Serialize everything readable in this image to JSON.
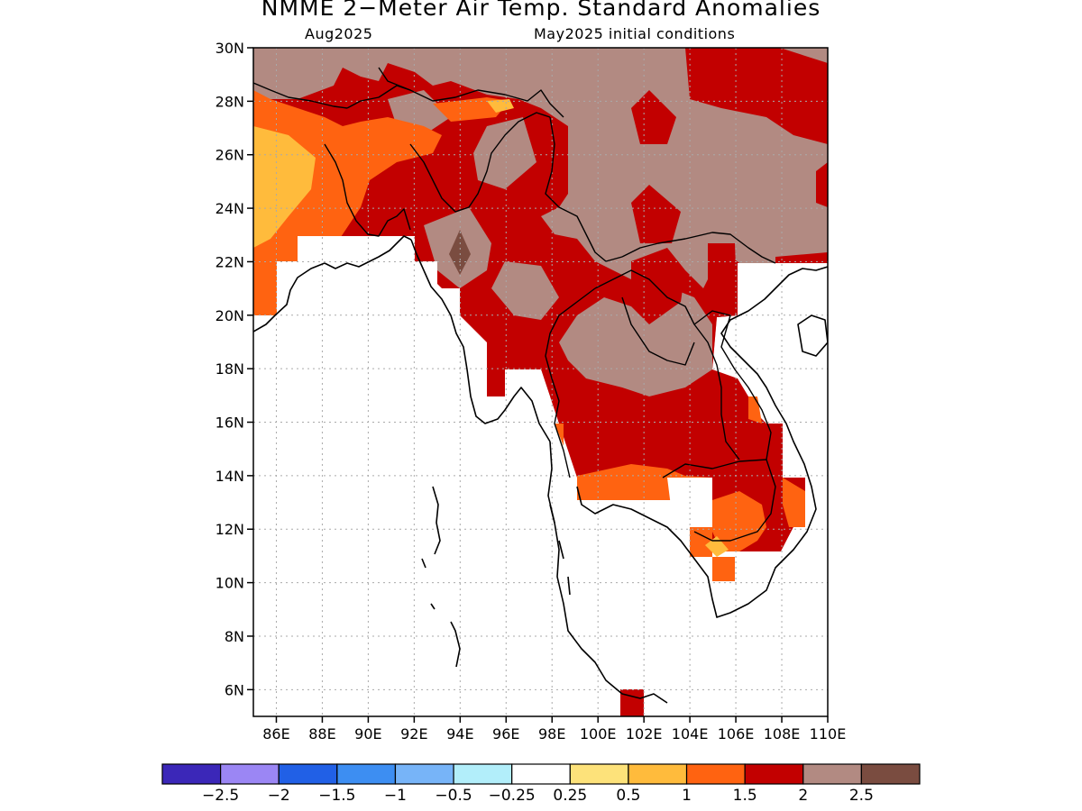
{
  "title": "NMME 2−Meter Air Temp. Standard Anomalies",
  "valid_month": "Aug2025",
  "initial_conditions": "May2025 initial conditions",
  "map": {
    "lon_range": [
      85,
      110
    ],
    "lat_range": [
      5,
      30
    ],
    "lat_ticks": [
      "30N",
      "28N",
      "26N",
      "24N",
      "22N",
      "20N",
      "18N",
      "16N",
      "14N",
      "12N",
      "10N",
      "8N",
      "6N"
    ],
    "lon_ticks": [
      "86E",
      "88E",
      "90E",
      "92E",
      "94E",
      "96E",
      "98E",
      "100E",
      "102E",
      "104E",
      "106E",
      "108E",
      "110E"
    ],
    "grid": true
  },
  "colorbar": {
    "colors": [
      "#3b27b8",
      "#9b86f4",
      "#2160e6",
      "#3d8ef2",
      "#77b4f8",
      "#b2eefa",
      "#ffffff",
      "#fde27a",
      "#ffbb3c",
      "#ff6311",
      "#c20000",
      "#b28a82",
      "#7a4c40"
    ],
    "labels": [
      "−2.5",
      "−2",
      "−1.5",
      "−1",
      "−0.5",
      "−0.25",
      "0.25",
      "0.5",
      "1",
      "1.5",
      "2",
      "2.5"
    ]
  },
  "anomaly_colors": {
    "brown": "#b28a82",
    "dark_brown": "#7a4c40",
    "red": "#c20000",
    "orange": "#ff6311",
    "yellow_orange": "#ffbb3c",
    "white": "#ffffff"
  }
}
